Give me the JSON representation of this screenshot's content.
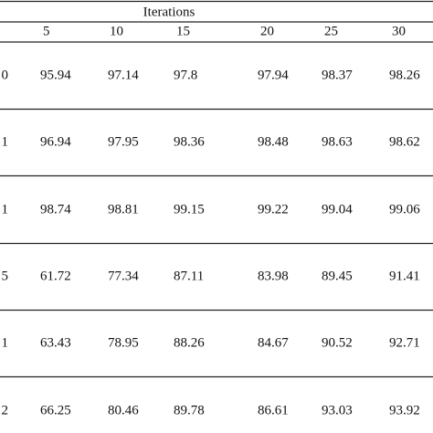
{
  "table": {
    "header_title": "Iterations",
    "columns": [
      5,
      10,
      15,
      20,
      25,
      30
    ],
    "rows": [
      {
        "label": "0",
        "values": [
          95.94,
          97.14,
          97.8,
          97.94,
          98.37,
          98.26
        ]
      },
      {
        "label": "1",
        "values": [
          96.94,
          97.95,
          98.36,
          98.48,
          98.63,
          98.62
        ]
      },
      {
        "label": "1",
        "values": [
          98.74,
          98.81,
          99.15,
          99.22,
          99.04,
          99.06
        ]
      },
      {
        "label": "5",
        "values": [
          61.72,
          77.34,
          87.11,
          83.98,
          89.45,
          91.41
        ]
      },
      {
        "label": "1",
        "values": [
          63.43,
          78.95,
          88.26,
          84.67,
          90.52,
          92.71
        ]
      },
      {
        "label": "2",
        "values": [
          66.25,
          80.46,
          89.78,
          86.61,
          93.03,
          93.92
        ]
      }
    ]
  }
}
